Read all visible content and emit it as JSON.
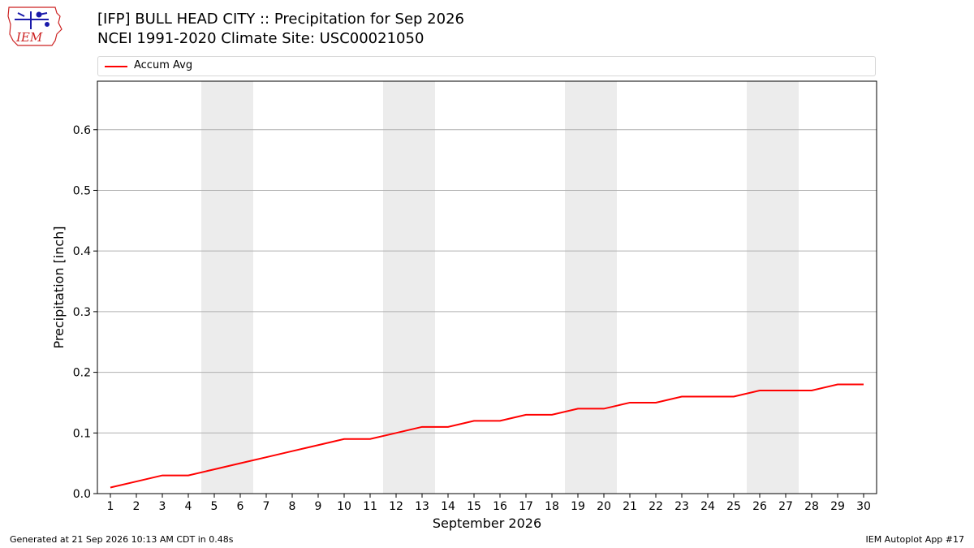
{
  "header": {
    "logo_text": "IEM",
    "title_line1": "[IFP] BULL HEAD CITY :: Precipitation for Sep 2026",
    "title_line2": "NCEI 1991-2020 Climate Site: USC00021050"
  },
  "footer": {
    "generated": "Generated at 21 Sep 2026 10:13 AM CDT in 0.48s",
    "app": "IEM Autoplot App #17"
  },
  "colors": {
    "series": "#ff0000",
    "weekend_band": "#ececec",
    "grid": "#b0b0b0",
    "logo_red": "#cc2222",
    "logo_blue": "#1a1aaa"
  },
  "chart_data": {
    "type": "line",
    "title": "[IFP] BULL HEAD CITY :: Precipitation for Sep 2026",
    "subtitle": "NCEI 1991-2020 Climate Site: USC00021050",
    "xlabel": "September 2026",
    "ylabel": "Precipitation [inch]",
    "x": [
      1,
      2,
      3,
      4,
      5,
      6,
      7,
      8,
      9,
      10,
      11,
      12,
      13,
      14,
      15,
      16,
      17,
      18,
      19,
      20,
      21,
      22,
      23,
      24,
      25,
      26,
      27,
      28,
      29,
      30
    ],
    "series": [
      {
        "name": "Accum Avg",
        "color": "#ff0000",
        "values": [
          0.01,
          0.02,
          0.03,
          0.03,
          0.04,
          0.05,
          0.06,
          0.07,
          0.08,
          0.09,
          0.09,
          0.1,
          0.11,
          0.11,
          0.12,
          0.12,
          0.13,
          0.13,
          0.14,
          0.14,
          0.15,
          0.15,
          0.16,
          0.16,
          0.16,
          0.17,
          0.17,
          0.17,
          0.18,
          0.18
        ]
      }
    ],
    "xlim": [
      0.5,
      30.5
    ],
    "ylim": [
      0.0,
      0.68
    ],
    "yticks": [
      "0.0",
      "0.1",
      "0.2",
      "0.3",
      "0.4",
      "0.5",
      "0.6"
    ],
    "xticks": [
      "1",
      "2",
      "3",
      "4",
      "5",
      "6",
      "7",
      "8",
      "9",
      "10",
      "11",
      "12",
      "13",
      "14",
      "15",
      "16",
      "17",
      "18",
      "19",
      "20",
      "21",
      "22",
      "23",
      "24",
      "25",
      "26",
      "27",
      "28",
      "29",
      "30"
    ],
    "shaded_days": [
      [
        5,
        6
      ],
      [
        12,
        13
      ],
      [
        19,
        20
      ],
      [
        26,
        27
      ]
    ],
    "grid": "horizontal",
    "legend_position": "top"
  }
}
